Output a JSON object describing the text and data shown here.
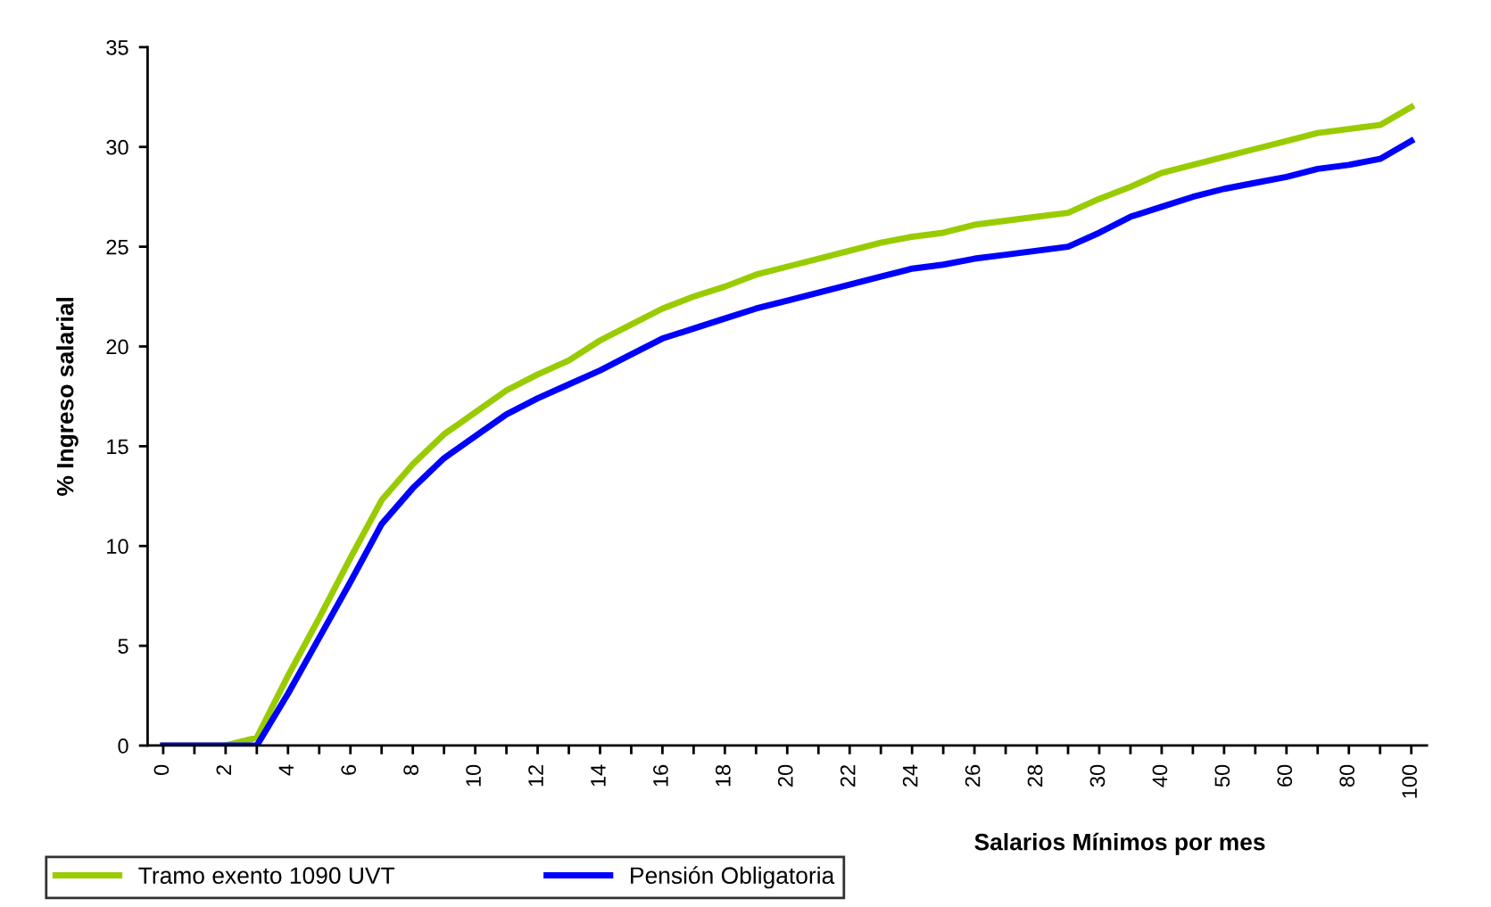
{
  "chart_data": {
    "type": "line",
    "xlabel": "Salarios Mínimos por mes",
    "ylabel": "% Ingreso salarial",
    "categories": [
      "0",
      null,
      "2",
      null,
      "4",
      null,
      "6",
      null,
      "8",
      null,
      "10",
      null,
      "12",
      null,
      "14",
      null,
      "16",
      null,
      "18",
      null,
      "20",
      null,
      "22",
      null,
      "24",
      null,
      "26",
      null,
      "28",
      null,
      "30",
      null,
      "40",
      null,
      "50",
      null,
      "60",
      null,
      "80",
      null,
      "100"
    ],
    "series": [
      {
        "name": "Tramo exento 1090 UVT",
        "color": "#99cc00",
        "values": [
          0,
          0,
          0,
          0.4,
          3.5,
          6.4,
          9.4,
          12.3,
          14.1,
          15.6,
          16.7,
          17.8,
          18.6,
          19.3,
          20.3,
          21.1,
          21.9,
          22.5,
          23.0,
          23.6,
          24.0,
          24.4,
          24.8,
          25.2,
          25.5,
          25.7,
          26.1,
          26.3,
          26.5,
          26.7,
          27.4,
          28.0,
          28.7,
          29.1,
          29.5,
          29.9,
          30.3,
          30.7,
          30.9,
          31.1,
          32.0
        ]
      },
      {
        "name": "Pensión Obligatoria",
        "color": "#0000ff",
        "values": [
          0,
          0,
          0,
          0,
          2.6,
          5.4,
          8.2,
          11.1,
          12.9,
          14.4,
          15.5,
          16.6,
          17.4,
          18.1,
          18.8,
          19.6,
          20.4,
          20.9,
          21.4,
          21.9,
          22.3,
          22.7,
          23.1,
          23.5,
          23.9,
          24.1,
          24.4,
          24.6,
          24.8,
          25.0,
          25.7,
          26.5,
          27.0,
          27.5,
          27.9,
          28.2,
          28.5,
          28.9,
          29.1,
          29.4,
          30.3
        ]
      }
    ],
    "ylim": [
      0,
      35
    ],
    "yticks": [
      0,
      5,
      10,
      15,
      20,
      25,
      30,
      35
    ],
    "grid": false,
    "legend": "bottom left",
    "marker": "none",
    "line_style": "solid"
  }
}
